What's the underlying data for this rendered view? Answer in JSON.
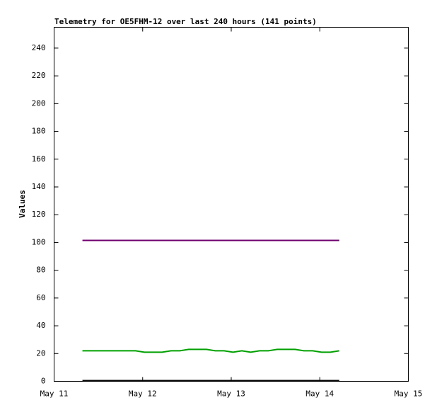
{
  "chart_data": {
    "type": "line",
    "title": "Telemetry for OE5FHM-12 over last 240 hours (141 points)",
    "y_label": "Values",
    "x": [
      0.32,
      0.42,
      0.52,
      0.62,
      0.72,
      0.82,
      0.92,
      1.02,
      1.12,
      1.22,
      1.32,
      1.42,
      1.52,
      1.62,
      1.72,
      1.82,
      1.92,
      2.02,
      2.12,
      2.22,
      2.32,
      2.42,
      2.52,
      2.62,
      2.72,
      2.82,
      2.92,
      3.02,
      3.12,
      3.22
    ],
    "series": [
      {
        "color": "#700070",
        "values": [
          101.5,
          101.5,
          101.5,
          101.5,
          101.5,
          101.5,
          101.5,
          101.5,
          101.5,
          101.5,
          101.5,
          101.5,
          101.5,
          101.5,
          101.5,
          101.5,
          101.5,
          101.5,
          101.5,
          101.5,
          101.5,
          101.5,
          101.5,
          101.5,
          101.5,
          101.5,
          101.5,
          101.5,
          101.5,
          101.5
        ]
      },
      {
        "color": "#00a000",
        "values": [
          22,
          22,
          22,
          22,
          22,
          22,
          22,
          21,
          21,
          21,
          22,
          22,
          23,
          23,
          23,
          22,
          22,
          21,
          22,
          21,
          22,
          22,
          23,
          23,
          23,
          22,
          22,
          21,
          21,
          22
        ]
      },
      {
        "color": "#000000",
        "values": [
          0.5,
          0.5,
          0.5,
          0.5,
          0.5,
          0.5,
          0.5,
          0.5,
          0.5,
          0.5,
          0.5,
          0.5,
          0.5,
          0.5,
          0.5,
          0.5,
          0.5,
          0.5,
          0.5,
          0.5,
          0.5,
          0.5,
          0.5,
          0.5,
          0.5,
          0.5,
          0.5,
          0.5,
          0.5,
          0.5
        ]
      }
    ],
    "xlim": [
      0,
      4
    ],
    "xticks": [
      {
        "value": 0,
        "label": "May 11"
      },
      {
        "value": 1,
        "label": "May 12"
      },
      {
        "value": 2,
        "label": "May 13"
      },
      {
        "value": 3,
        "label": "May 14"
      },
      {
        "value": 4,
        "label": "May 15"
      }
    ],
    "ylim": [
      0,
      255
    ],
    "yticks": [
      0,
      20,
      40,
      60,
      80,
      100,
      120,
      140,
      160,
      180,
      200,
      220,
      240
    ],
    "grid": false
  }
}
